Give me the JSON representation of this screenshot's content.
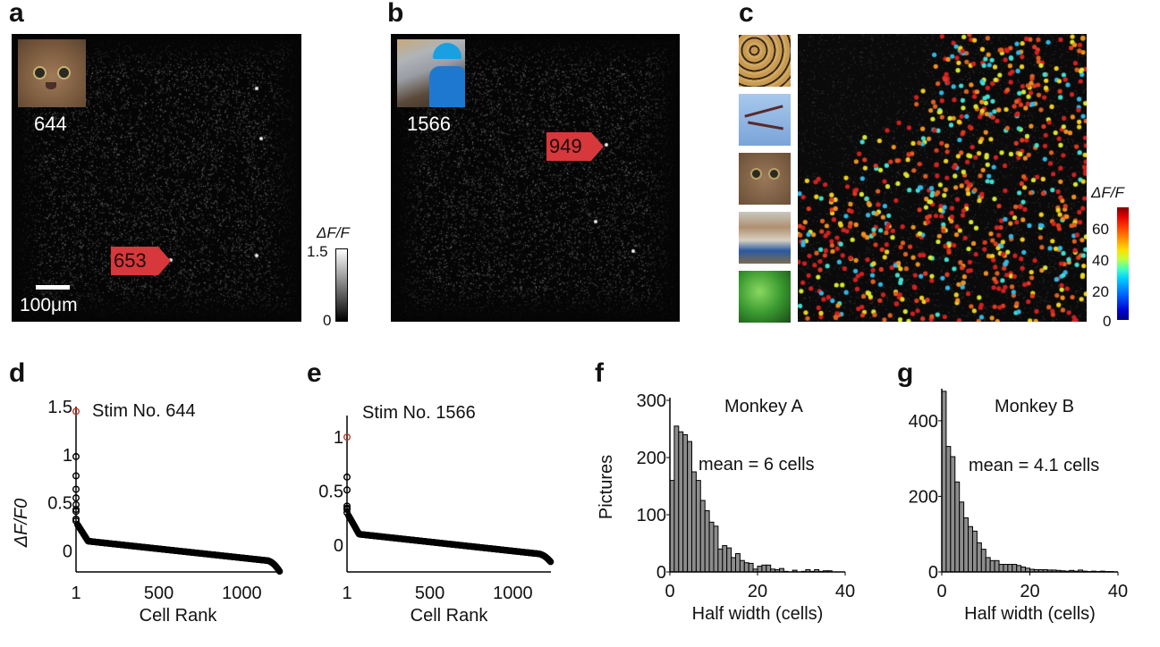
{
  "panels": {
    "a": {
      "label": "a",
      "stim_number": "644",
      "thumbnail": "kitten",
      "cell_tag": "653",
      "scale_bar": "100μm",
      "colorbar": {
        "title": "ΔF/F",
        "max": "1.5",
        "min": "0"
      }
    },
    "b": {
      "label": "b",
      "stim_number": "1566",
      "thumbnail": "worker-in-blue-helmet",
      "cell_tag": "949"
    },
    "c": {
      "label": "c",
      "thumbnails": [
        "leopard",
        "flamingos",
        "kitten",
        "boats",
        "leaves"
      ],
      "colorbar": {
        "title": "ΔF/F",
        "ticks": [
          "60",
          "40",
          "20",
          "0"
        ],
        "range": [
          0,
          70
        ]
      }
    },
    "d": {
      "label": "d"
    },
    "e": {
      "label": "e"
    },
    "f": {
      "label": "f"
    },
    "g": {
      "label": "g"
    }
  },
  "colors": {
    "highlight": "#c0392b",
    "tag": "#d6383b",
    "bar": "#8c8c8c"
  },
  "chart_data": [
    {
      "id": "d",
      "type": "scatter",
      "title": "Stim No. 644",
      "xlabel": "Cell Rank",
      "ylabel": "ΔF/F0",
      "xticks": [
        "1",
        "500",
        "1000"
      ],
      "yticks": [
        "0",
        "0.5",
        "1",
        "1.5"
      ],
      "xlim": [
        1,
        1230
      ],
      "ylim": [
        -0.22,
        1.5
      ],
      "highlight_point": {
        "x": 1,
        "y": 1.45
      },
      "top_points": [
        1.45,
        0.98,
        0.78,
        0.64,
        0.55,
        0.48,
        0.43,
        0.41,
        0.33,
        0.31
      ],
      "curve": {
        "n": 1230,
        "start": 0.3,
        "knee": 0.1,
        "mid": 0.02,
        "end_tail": -0.1,
        "last": -0.22
      }
    },
    {
      "id": "e",
      "type": "scatter",
      "title": "Stim No. 1566",
      "xlabel": "Cell Rank",
      "yticks": [
        "0",
        "0.5",
        "1"
      ],
      "xticks": [
        "1",
        "500",
        "1000"
      ],
      "xlim": [
        1,
        1230
      ],
      "ylim": [
        -0.25,
        1.2
      ],
      "highlight_point": {
        "x": 1,
        "y": 1.0
      },
      "top_points": [
        1.0,
        0.63,
        0.51,
        0.36,
        0.34,
        0.33,
        0.3
      ],
      "curve": {
        "n": 1230,
        "start": 0.3,
        "knee": 0.1,
        "mid": 0.03,
        "end_tail": -0.08,
        "last": -0.16
      }
    },
    {
      "id": "f",
      "type": "bar",
      "title": "Monkey A",
      "annotation": "mean = 6 cells",
      "xlabel": "Half width (cells)",
      "ylabel": "Pictures",
      "xticks": [
        "0",
        "20",
        "40"
      ],
      "yticks": [
        "0",
        "100",
        "200",
        "300"
      ],
      "xlim": [
        0,
        40
      ],
      "ylim": [
        0,
        300
      ],
      "bin_width": 1,
      "values": [
        160,
        255,
        245,
        240,
        228,
        175,
        160,
        125,
        107,
        87,
        80,
        40,
        46,
        42,
        25,
        32,
        20,
        16,
        15,
        5,
        10,
        12,
        12,
        5,
        4,
        6,
        1,
        0,
        3,
        0,
        1,
        4,
        1,
        4,
        1,
        2,
        2,
        0,
        0,
        0
      ]
    },
    {
      "id": "g",
      "type": "bar",
      "title": "Monkey B",
      "annotation": "mean = 4.1 cells",
      "xlabel": "Half width (cells)",
      "xticks": [
        "0",
        "20",
        "40"
      ],
      "yticks": [
        "0",
        "200",
        "400"
      ],
      "xlim": [
        0,
        40
      ],
      "ylim": [
        0,
        480
      ],
      "bin_width": 1,
      "values": [
        478,
        332,
        305,
        238,
        185,
        143,
        120,
        108,
        77,
        60,
        38,
        30,
        30,
        20,
        20,
        20,
        20,
        17,
        13,
        10,
        7,
        6,
        6,
        6,
        5,
        5,
        4,
        3,
        2,
        4,
        2,
        5,
        2,
        1,
        2,
        1,
        2,
        1,
        1,
        0
      ]
    }
  ]
}
